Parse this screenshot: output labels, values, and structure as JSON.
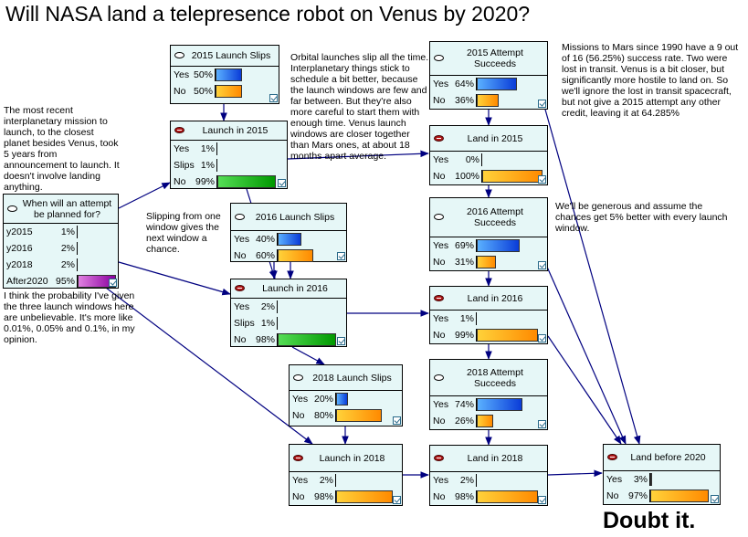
{
  "title": "Will NASA land a telepresence robot on Venus by 2020?",
  "conclusion": "Doubt it.",
  "nodes": [
    {
      "id": "when_planned",
      "title": "When will an attempt be planned for?",
      "evidence": false,
      "states": [
        {
          "label": "y2015",
          "value": "1%",
          "p": 0.01,
          "color": "purple"
        },
        {
          "label": "y2016",
          "value": "2%",
          "p": 0.02,
          "color": "purple"
        },
        {
          "label": "y2018",
          "value": "2%",
          "p": 0.02,
          "color": "purple"
        },
        {
          "label": "After2020",
          "value": "95%",
          "p": 0.95,
          "color": "purple"
        }
      ]
    },
    {
      "id": "launch_2015_slips",
      "title": "2015 Launch Slips",
      "evidence": false,
      "states": [
        {
          "label": "Yes",
          "value": "50%",
          "p": 0.5,
          "color": "blue"
        },
        {
          "label": "No",
          "value": "50%",
          "p": 0.5,
          "color": "orange"
        }
      ]
    },
    {
      "id": "launch_2015",
      "title": "Launch in 2015",
      "evidence": true,
      "states": [
        {
          "label": "Yes",
          "value": "1%",
          "p": 0.01,
          "color": "green"
        },
        {
          "label": "Slips",
          "value": "1%",
          "p": 0.01,
          "color": "green"
        },
        {
          "label": "No",
          "value": "99%",
          "p": 0.99,
          "color": "green"
        }
      ]
    },
    {
      "id": "launch_2016_slips",
      "title": "2016 Launch Slips",
      "evidence": false,
      "states": [
        {
          "label": "Yes",
          "value": "40%",
          "p": 0.4,
          "color": "blue"
        },
        {
          "label": "No",
          "value": "60%",
          "p": 0.6,
          "color": "orange"
        }
      ]
    },
    {
      "id": "launch_2016",
      "title": "Launch in 2016",
      "evidence": true,
      "states": [
        {
          "label": "Yes",
          "value": "2%",
          "p": 0.02,
          "color": "green"
        },
        {
          "label": "Slips",
          "value": "1%",
          "p": 0.01,
          "color": "green"
        },
        {
          "label": "No",
          "value": "98%",
          "p": 0.98,
          "color": "green"
        }
      ]
    },
    {
      "id": "launch_2018_slips",
      "title": "2018 Launch Slips",
      "evidence": false,
      "states": [
        {
          "label": "Yes",
          "value": "20%",
          "p": 0.2,
          "color": "blue"
        },
        {
          "label": "No",
          "value": "80%",
          "p": 0.8,
          "color": "orange"
        }
      ]
    },
    {
      "id": "launch_2018",
      "title": "Launch in 2018",
      "evidence": true,
      "states": [
        {
          "label": "Yes",
          "value": "2%",
          "p": 0.02,
          "color": "blue"
        },
        {
          "label": "No",
          "value": "98%",
          "p": 0.98,
          "color": "orange"
        }
      ]
    },
    {
      "id": "attempt_2015",
      "title": "2015 Attempt Succeeds",
      "evidence": false,
      "states": [
        {
          "label": "Yes",
          "value": "64%",
          "p": 0.64,
          "color": "blue"
        },
        {
          "label": "No",
          "value": "36%",
          "p": 0.36,
          "color": "orange"
        }
      ]
    },
    {
      "id": "land_2015",
      "title": "Land in 2015",
      "evidence": true,
      "states": [
        {
          "label": "Yes",
          "value": "0%",
          "p": 0.0,
          "color": "blue"
        },
        {
          "label": "No",
          "value": "100%",
          "p": 1.0,
          "color": "orange"
        }
      ]
    },
    {
      "id": "attempt_2016",
      "title": "2016 Attempt Succeeds",
      "evidence": false,
      "states": [
        {
          "label": "Yes",
          "value": "69%",
          "p": 0.69,
          "color": "blue"
        },
        {
          "label": "No",
          "value": "31%",
          "p": 0.31,
          "color": "orange"
        }
      ]
    },
    {
      "id": "land_2016",
      "title": "Land in 2016",
      "evidence": true,
      "states": [
        {
          "label": "Yes",
          "value": "1%",
          "p": 0.01,
          "color": "blue"
        },
        {
          "label": "No",
          "value": "99%",
          "p": 0.99,
          "color": "orange"
        }
      ]
    },
    {
      "id": "attempt_2018",
      "title": "2018 Attempt Succeeds",
      "evidence": false,
      "states": [
        {
          "label": "Yes",
          "value": "74%",
          "p": 0.74,
          "color": "blue"
        },
        {
          "label": "No",
          "value": "26%",
          "p": 0.26,
          "color": "orange"
        }
      ]
    },
    {
      "id": "land_2018",
      "title": "Land in 2018",
      "evidence": true,
      "states": [
        {
          "label": "Yes",
          "value": "2%",
          "p": 0.02,
          "color": "blue"
        },
        {
          "label": "No",
          "value": "98%",
          "p": 0.98,
          "color": "orange"
        }
      ]
    },
    {
      "id": "land_before_2020",
      "title": "Land before 2020",
      "evidence": true,
      "states": [
        {
          "label": "Yes",
          "value": "3%",
          "p": 0.03,
          "color": "blue"
        },
        {
          "label": "No",
          "value": "97%",
          "p": 0.97,
          "color": "orange"
        }
      ]
    }
  ],
  "edges": [
    [
      "when_planned",
      "launch_2015"
    ],
    [
      "when_planned",
      "launch_2016"
    ],
    [
      "when_planned",
      "launch_2018"
    ],
    [
      "launch_2015_slips",
      "launch_2015"
    ],
    [
      "launch_2015",
      "launch_2016"
    ],
    [
      "launch_2016_slips",
      "launch_2016"
    ],
    [
      "launch_2015",
      "land_2015"
    ],
    [
      "launch_2016",
      "land_2016"
    ],
    [
      "launch_2018_slips",
      "launch_2018"
    ],
    [
      "launch_2018",
      "land_2018"
    ],
    [
      "attempt_2015",
      "land_2015"
    ],
    [
      "attempt_2016",
      "land_2016"
    ],
    [
      "attempt_2018",
      "land_2018"
    ],
    [
      "land_2015",
      "land_before_2020"
    ],
    [
      "land_2016",
      "land_before_2020"
    ],
    [
      "land_2018",
      "land_before_2020"
    ],
    [
      "launch_2016_slips",
      "launch_2016"
    ]
  ],
  "notes": {
    "recent_mission": "The most recent interplanetary mission to launch, to the closest planet besides Venus, took 5 years from announcement to launch. It doesn't involve landing anything.",
    "probability_opinion": "I think the probability I've given the three launch windows here are unbelievable. It's more like 0.01%, 0.05% and 0.1%, in my opinion.",
    "slipping_window": "Slipping from one window gives the next window a chance.",
    "orbital_launches": "Orbital launches slip all the time. Interplanetary things stick to schedule a bit better, because the launch windows are few and far between. But they're also more careful to start them with enough time. Venus launch windows are closer together than Mars ones, at about 18 months apart average.",
    "mars_missions": "Missions to Mars since 1990 have a 9 out of 16 (56.25%) success rate. Two were lost in transit. Venus is a bit closer, but significantly more hostile to land on. So we'll ignore the lost in transit spacecraft, but not give a 2015 attempt any other credit, leaving it at 64.285%",
    "generous": "We'll be generous and assume the chances get 5% better with every launch window."
  }
}
